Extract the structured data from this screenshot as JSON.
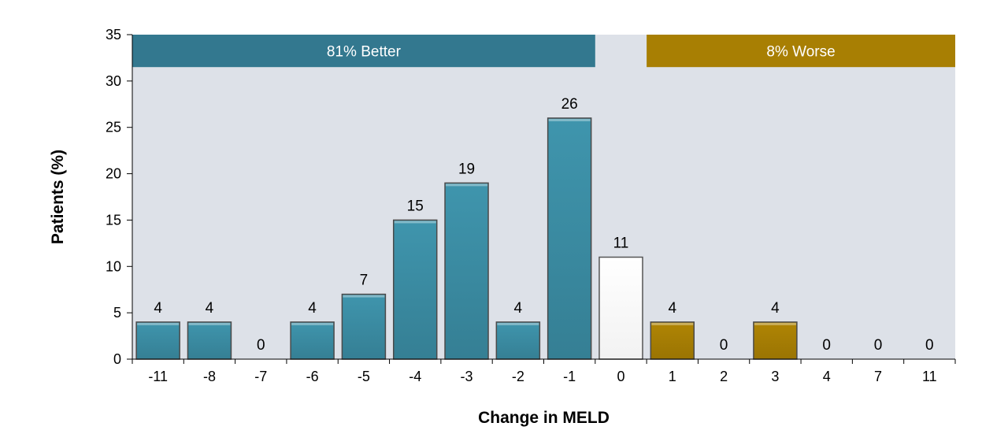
{
  "chart_data": {
    "type": "bar",
    "xlabel": "Change in MELD",
    "ylabel": "Patients (%)",
    "ylim": [
      0,
      35
    ],
    "yticks": [
      0,
      5,
      10,
      15,
      20,
      25,
      30,
      35
    ],
    "grid": false,
    "categories": [
      "-11",
      "-8",
      "-7",
      "-6",
      "-5",
      "-4",
      "-3",
      "-2",
      "-1",
      "0",
      "1",
      "2",
      "3",
      "4",
      "7",
      "11"
    ],
    "values": [
      4,
      4,
      0,
      4,
      7,
      15,
      19,
      4,
      26,
      11,
      4,
      0,
      4,
      0,
      0,
      0
    ],
    "bar_groups": [
      "better",
      "better",
      "better",
      "better",
      "better",
      "better",
      "better",
      "better",
      "better",
      "neutral",
      "worse",
      "worse",
      "worse",
      "worse",
      "worse",
      "worse"
    ],
    "banners": [
      {
        "label": "81% Better",
        "group": "better",
        "from_category": "-11",
        "to_category": "-1"
      },
      {
        "label": "8% Worse",
        "group": "worse",
        "from_category": "1",
        "to_category": "11"
      }
    ],
    "colors": {
      "better": "#3f95ad",
      "neutral": "#ffffff",
      "worse": "#b08504",
      "better_banner": "#33788f",
      "worse_banner": "#a87f03",
      "plot_background": "#dde1e8"
    }
  }
}
